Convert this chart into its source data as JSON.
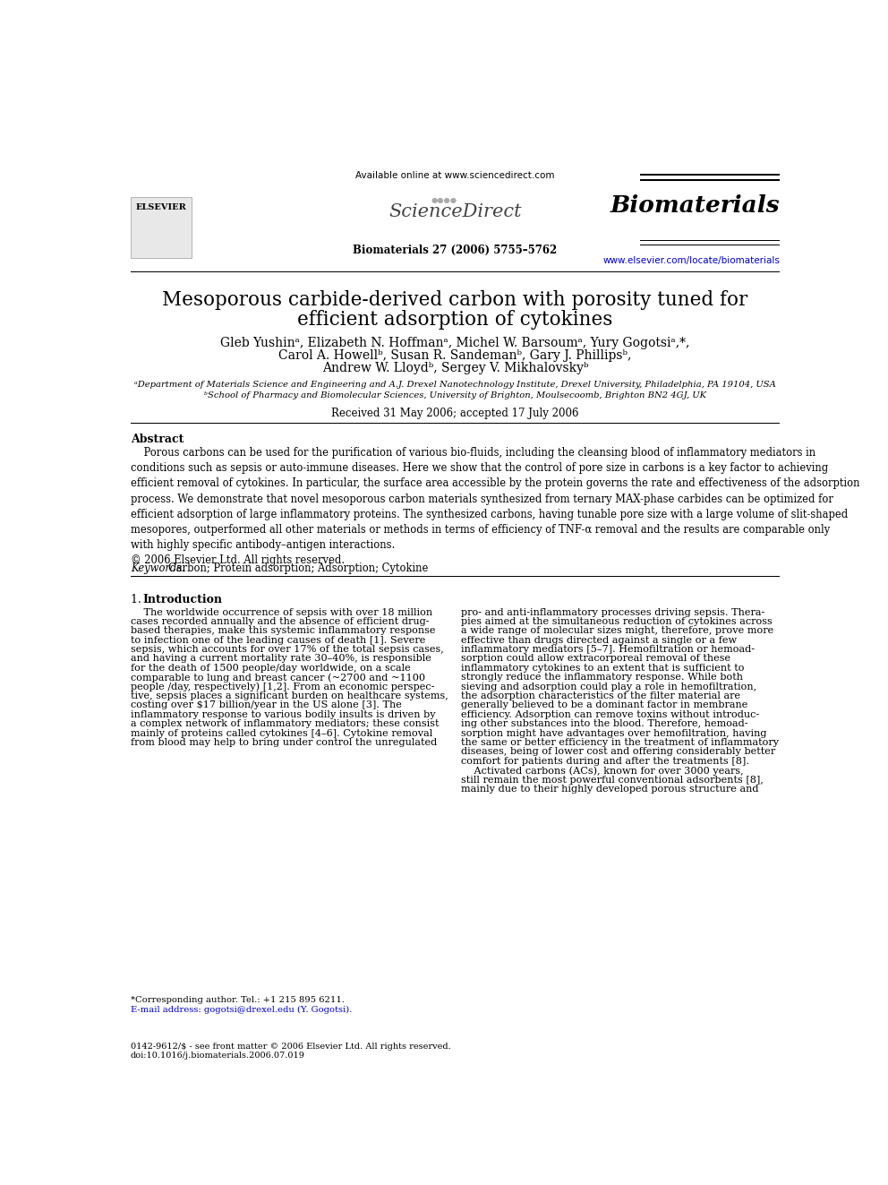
{
  "title_line1": "Mesoporous carbide-derived carbon with porosity tuned for",
  "title_line2": "efficient adsorption of cytokines",
  "authors_line1": "Gleb Yushinᵃ, Elizabeth N. Hoffmanᵃ, Michel W. Barsoumᵃ, Yury Gogotsiᵃ,*,",
  "authors_line2": "Carol A. Howellᵇ, Susan R. Sandemanᵇ, Gary J. Phillipsᵇ,",
  "authors_line3": "Andrew W. Lloydᵇ, Sergey V. Mikhalovskyᵇ",
  "affil_a": "ᵃDepartment of Materials Science and Engineering and A.J. Drexel Nanotechnology Institute, Drexel University, Philadelphia, PA 19104, USA",
  "affil_b": "ᵇSchool of Pharmacy and Biomolecular Sciences, University of Brighton, Moulsecoomb, Brighton BN2 4GJ, UK",
  "received": "Received 31 May 2006; accepted 17 July 2006",
  "header_available": "Available online at www.sciencedirect.com",
  "header_journal": "Biomaterials 27 (2006) 5755–5762",
  "header_url": "www.elsevier.com/locate/biomaterials",
  "journal_name": "Biomaterials",
  "elsevier_text": "ELSEVIER",
  "sciencedirect": "ScienceDirect",
  "abstract_title": "Abstract",
  "abstract_text": "    Porous carbons can be used for the purification of various bio-fluids, including the cleansing blood of inflammatory mediators in\nconditions such as sepsis or auto-immune diseases. Here we show that the control of pore size in carbons is a key factor to achieving\nefficient removal of cytokines. In particular, the surface area accessible by the protein governs the rate and effectiveness of the adsorption\nprocess. We demonstrate that novel mesoporous carbon materials synthesized from ternary MAX-phase carbides can be optimized for\nefficient adsorption of large inflammatory proteins. The synthesized carbons, having tunable pore size with a large volume of slit-shaped\nmesopores, outperformed all other materials or methods in terms of efficiency of TNF-α removal and the results are comparable only\nwith highly specific antibody–antigen interactions.\n© 2006 Elsevier Ltd. All rights reserved.",
  "keywords_label": "Keywords: ",
  "keywords_text": "Carbon; Protein adsorption; Adsorption; Cytokine",
  "section1_num": "1.",
  "section1_title": "Introduction",
  "intro_left_lines": [
    "    The worldwide occurrence of sepsis with over 18 million",
    "cases recorded annually and the absence of efficient drug-",
    "based therapies, make this systemic inflammatory response",
    "to infection one of the leading causes of death [1]. Severe",
    "sepsis, which accounts for over 17% of the total sepsis cases,",
    "and having a current mortality rate 30–40%, is responsible",
    "for the death of 1500 people/day worldwide, on a scale",
    "comparable to lung and breast cancer (~2700 and ~1100",
    "people /day, respectively) [1,2]. From an economic perspec-",
    "tive, sepsis places a significant burden on healthcare systems,",
    "costing over $17 billion/year in the US alone [3]. The",
    "inflammatory response to various bodily insults is driven by",
    "a complex network of inflammatory mediators; these consist",
    "mainly of proteins called cytokines [4–6]. Cytokine removal",
    "from blood may help to bring under control the unregulated"
  ],
  "intro_right_lines": [
    "pro- and anti-inflammatory processes driving sepsis. Thera-",
    "pies aimed at the simultaneous reduction of cytokines across",
    "a wide range of molecular sizes might, therefore, prove more",
    "effective than drugs directed against a single or a few",
    "inflammatory mediators [5–7]. Hemofiltration or hemoad-",
    "sorption could allow extracorporeal removal of these",
    "inflammatory cytokines to an extent that is sufficient to",
    "strongly reduce the inflammatory response. While both",
    "sieving and adsorption could play a role in hemofiltration,",
    "the adsorption characteristics of the filter material are",
    "generally believed to be a dominant factor in membrane",
    "efficiency. Adsorption can remove toxins without introduc-",
    "ing other substances into the blood. Therefore, hemoad-",
    "sorption might have advantages over hemofiltration, having",
    "the same or better efficiency in the treatment of inflammatory",
    "diseases, being of lower cost and offering considerably better",
    "comfort for patients during and after the treatments [8].",
    "    Activated carbons (ACs), known for over 3000 years,",
    "still remain the most powerful conventional adsorbents [8],",
    "mainly due to their highly developed porous structure and"
  ],
  "footnote_star": "*Corresponding author. Tel.: +1 215 895 6211.",
  "footnote_email": "E-mail address: gogotsi@drexel.edu (Y. Gogotsi).",
  "footnote_bottom1": "0142-9612/$ - see front matter © 2006 Elsevier Ltd. All rights reserved.",
  "footnote_bottom2": "doi:10.1016/j.biomaterials.2006.07.019",
  "bg_color": "#ffffff",
  "text_color": "#000000",
  "link_color": "#0000cc"
}
